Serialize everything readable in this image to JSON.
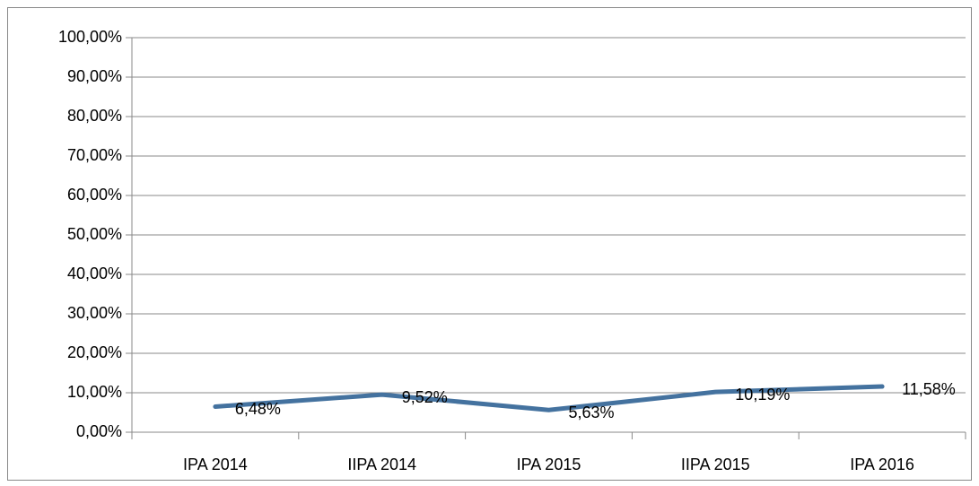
{
  "chart_data": {
    "type": "line",
    "categories": [
      "IPA 2014",
      "IIPA 2014",
      "IPA 2015",
      "IIPA 2015",
      "IPA 2016"
    ],
    "values": [
      6.48,
      9.52,
      5.63,
      10.19,
      11.58
    ],
    "value_labels": [
      "6,48%",
      "9,52%",
      "5,63%",
      "10,19%",
      "11,58%"
    ],
    "color": "#44729f",
    "ylim": [
      0,
      100
    ],
    "yticks": [
      {
        "value": 0,
        "label": "0,00%"
      },
      {
        "value": 10,
        "label": "10,00%"
      },
      {
        "value": 20,
        "label": "20,00%"
      },
      {
        "value": 30,
        "label": "30,00%"
      },
      {
        "value": 40,
        "label": "40,00%"
      },
      {
        "value": 50,
        "label": "50,00%"
      },
      {
        "value": 60,
        "label": "60,00%"
      },
      {
        "value": 70,
        "label": "70,00%"
      },
      {
        "value": 80,
        "label": "80,00%"
      },
      {
        "value": 90,
        "label": "90,00%"
      },
      {
        "value": 100,
        "label": "100,00%"
      }
    ],
    "grid": true
  }
}
